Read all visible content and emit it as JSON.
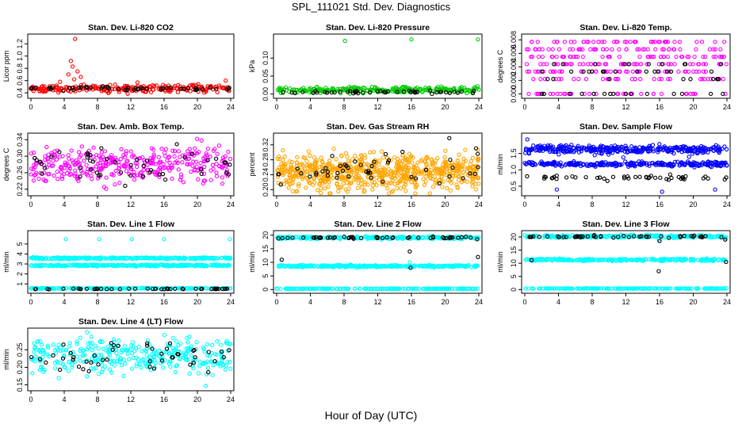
{
  "page": {
    "title": "SPL_111021  Std. Dev. Diagnostics",
    "xlabel": "Hour of Day (UTC)"
  },
  "colors": {
    "red": "#ff0000",
    "green": "#00cc00",
    "magenta": "#ff00ff",
    "orange": "#ffa500",
    "blue": "#0000ff",
    "cyan": "#00ffff",
    "black": "#000000"
  },
  "chart_data": [
    {
      "id": "co2",
      "type": "scatter",
      "title": "Stan. Dev. Li-820 CO2",
      "ylabel": "Licor ppm",
      "xlim": [
        0,
        24
      ],
      "ylim": [
        0.35,
        1.32
      ],
      "xticks": [
        0,
        4,
        8,
        12,
        16,
        20,
        24
      ],
      "xticklabels": [
        "0",
        "4",
        "8",
        "12",
        "16",
        "20",
        "24"
      ],
      "yticks": [
        0.4,
        0.6,
        0.8,
        1.0,
        1.2
      ],
      "yticklabels": [
        "0.4",
        "0.6",
        "0.8",
        "1.0",
        "1.2"
      ],
      "series": [
        {
          "name": "all",
          "color": "red",
          "bands": [
            {
              "y": 0.47,
              "sd": 0.03,
              "n": 240
            }
          ],
          "extra": [
            [
              5.3,
              1.28
            ],
            [
              4.8,
              0.92
            ],
            [
              5.0,
              0.83
            ],
            [
              5.6,
              0.75
            ],
            [
              4.5,
              0.7
            ],
            [
              6.0,
              0.66
            ],
            [
              5.2,
              0.62
            ],
            [
              23.4,
              0.6
            ],
            [
              3.5,
              0.58
            ],
            [
              12.8,
              0.57
            ]
          ]
        },
        {
          "name": "hourly",
          "color": "black",
          "bands": [
            {
              "y": 0.47,
              "sd": 0.015,
              "n": 48
            }
          ],
          "extra": []
        }
      ]
    },
    {
      "id": "pressure",
      "type": "scatter",
      "title": "Stan. Dev. Li-820 Pressure",
      "ylabel": "kPa",
      "xlim": [
        0,
        24
      ],
      "ylim": [
        -0.005,
        0.16
      ],
      "xticks": [
        0,
        4,
        8,
        12,
        16,
        20,
        24
      ],
      "xticklabels": [
        "0",
        "4",
        "8",
        "12",
        "16",
        "20",
        "24"
      ],
      "yticks": [
        0.0,
        0.05,
        0.1
      ],
      "yticklabels": [
        "0.00",
        "0.05",
        "0.10"
      ],
      "series": [
        {
          "name": "all",
          "color": "green",
          "bands": [
            {
              "y": 0.012,
              "sd": 0.004,
              "n": 260
            }
          ],
          "extra": [
            [
              8.1,
              0.148
            ],
            [
              16.0,
              0.152
            ],
            [
              23.9,
              0.152
            ]
          ]
        },
        {
          "name": "hourly",
          "color": "black",
          "bands": [
            {
              "y": 0.006,
              "sd": 0.002,
              "n": 48
            }
          ],
          "extra": []
        }
      ]
    },
    {
      "id": "temp",
      "type": "scatter",
      "title": "Stan. Dev. Li-820 Temp.",
      "ylabel": "degrees C",
      "xlim": [
        0,
        24
      ],
      "ylim": [
        -0.0003,
        0.0085
      ],
      "xticks": [
        0,
        4,
        8,
        12,
        16,
        20,
        24
      ],
      "xticklabels": [
        "0",
        "4",
        "8",
        "12",
        "16",
        "20",
        "24"
      ],
      "yticks": [
        0.0,
        0.002,
        0.004,
        0.006,
        0.008
      ],
      "yticklabels": [
        "0.000",
        "0.002",
        "0.004",
        "0.006",
        "0.008"
      ],
      "series": [
        {
          "name": "all",
          "color": "magenta",
          "levels": [
            0.0,
            0.0022,
            0.0033,
            0.0044,
            0.0055,
            0.0066,
            0.0077
          ],
          "n": 300
        },
        {
          "name": "hourly",
          "color": "black",
          "levels": [
            0.0,
            0.0022,
            0.0033,
            0.0044
          ],
          "n": 48
        }
      ]
    },
    {
      "id": "ambbox",
      "type": "scatter",
      "title": "Stan. Dev. Amb. Box Temp.",
      "ylabel": "degrees C",
      "xlim": [
        0,
        24
      ],
      "ylim": [
        0.21,
        0.35
      ],
      "xticks": [
        0,
        4,
        8,
        12,
        16,
        20,
        24
      ],
      "xticklabels": [
        "0",
        "4",
        "8",
        "12",
        "16",
        "20",
        "24"
      ],
      "yticks": [
        0.22,
        0.26,
        0.3,
        0.34
      ],
      "yticklabels": [
        "0.22",
        "0.26",
        "0.30",
        "0.34"
      ],
      "series": [
        {
          "name": "all",
          "color": "magenta",
          "bands": [
            {
              "y": 0.28,
              "sd": 0.022,
              "n": 360
            }
          ],
          "extra": []
        },
        {
          "name": "hourly",
          "color": "black",
          "bands": [
            {
              "y": 0.28,
              "sd": 0.02,
              "n": 48
            }
          ],
          "extra": []
        }
      ]
    },
    {
      "id": "rh",
      "type": "scatter",
      "title": "Stan. Dev. Gas Stream RH",
      "ylabel": "percent",
      "xlim": [
        0,
        24
      ],
      "ylim": [
        0.19,
        0.345
      ],
      "xticks": [
        0,
        4,
        8,
        12,
        16,
        20,
        24
      ],
      "xticklabels": [
        "0",
        "4",
        "8",
        "12",
        "16",
        "20",
        "24"
      ],
      "yticks": [
        0.2,
        0.24,
        0.28,
        0.32
      ],
      "yticklabels": [
        "0.20",
        "0.24",
        "0.28",
        "0.32"
      ],
      "series": [
        {
          "name": "all",
          "color": "orange",
          "bands": [
            {
              "y": 0.245,
              "sd": 0.024,
              "n": 700
            }
          ],
          "extra": []
        },
        {
          "name": "hourly",
          "color": "black",
          "bands": [
            {
              "y": 0.25,
              "sd": 0.022,
              "n": 48
            }
          ],
          "extra": [
            [
              20.5,
              0.338
            ]
          ]
        }
      ]
    },
    {
      "id": "sample",
      "type": "scatter",
      "title": "Stan. Dev. Sample Flow",
      "ylabel": "ml/min",
      "xlim": [
        0,
        24
      ],
      "ylim": [
        0.28,
        2.05
      ],
      "xticks": [
        0,
        4,
        8,
        12,
        16,
        20,
        24
      ],
      "xticklabels": [
        "0",
        "4",
        "8",
        "12",
        "16",
        "20",
        "24"
      ],
      "yticks": [
        0.5,
        1.0,
        1.5
      ],
      "yticklabels": [
        "0.5",
        "1.0",
        "1.5"
      ],
      "series": [
        {
          "name": "all",
          "color": "blue",
          "bands": [
            {
              "y": 1.63,
              "sd": 0.06,
              "n": 340
            },
            {
              "y": 1.18,
              "sd": 0.035,
              "n": 260
            }
          ],
          "extra": [
            [
              0.3,
              1.93
            ],
            [
              16.3,
              0.33
            ],
            [
              3.8,
              0.4
            ],
            [
              22.6,
              0.4
            ],
            [
              11.7,
              1.38
            ],
            [
              19.5,
              1.4
            ],
            [
              8.3,
              1.45
            ]
          ]
        },
        {
          "name": "hourly",
          "color": "black",
          "bands": [
            {
              "y": 0.76,
              "sd": 0.04,
              "n": 48
            }
          ],
          "extra": []
        }
      ]
    },
    {
      "id": "line1",
      "type": "scatter",
      "title": "Stan. Dev. Line 1 Flow",
      "ylabel": "ml/min",
      "xlim": [
        0,
        24
      ],
      "ylim": [
        0.3,
        6.1
      ],
      "xticks": [
        0,
        4,
        8,
        12,
        16,
        20,
        24
      ],
      "xticklabels": [
        "0",
        "4",
        "8",
        "12",
        "16",
        "20",
        "24"
      ],
      "yticks": [
        1,
        2,
        3,
        4,
        5
      ],
      "yticklabels": [
        "1",
        "2",
        "3",
        "4",
        "5"
      ],
      "series": [
        {
          "name": "all",
          "color": "cyan",
          "bands": [
            {
              "y": 3.58,
              "sd": 0.04,
              "n": 320
            },
            {
              "y": 2.85,
              "sd": 0.04,
              "n": 320
            },
            {
              "y": 0.55,
              "sd": 0.02,
              "n": 200
            }
          ],
          "extra": [
            [
              4.2,
              5.5
            ],
            [
              8.2,
              5.5
            ],
            [
              12.1,
              5.5
            ],
            [
              16.0,
              5.5
            ],
            [
              23.9,
              5.5
            ]
          ]
        },
        {
          "name": "hourly",
          "color": "black",
          "bands": [
            {
              "y": 0.5,
              "sd": 0.02,
              "n": 48
            }
          ],
          "extra": []
        }
      ]
    },
    {
      "id": "line2",
      "type": "scatter",
      "title": "Stan. Dev. Line 2 Flow",
      "ylabel": "ml/min",
      "xlim": [
        0,
        24
      ],
      "ylim": [
        -0.5,
        20.8
      ],
      "xticks": [
        0,
        4,
        8,
        12,
        16,
        20,
        24
      ],
      "xticklabels": [
        "0",
        "4",
        "8",
        "12",
        "16",
        "20",
        "24"
      ],
      "yticks": [
        0,
        5,
        10,
        15,
        20
      ],
      "yticklabels": [
        "0",
        "5",
        "10",
        "15",
        "20"
      ],
      "series": [
        {
          "name": "all",
          "color": "cyan",
          "bands": [
            {
              "y": 19.1,
              "sd": 0.25,
              "n": 260
            },
            {
              "y": 8.6,
              "sd": 0.2,
              "n": 300
            },
            {
              "y": 0.3,
              "sd": 0.05,
              "n": 200
            }
          ],
          "extra": [
            [
              0.4,
              18.5
            ],
            [
              0.6,
              11.0
            ],
            [
              15.8,
              10.0
            ],
            [
              23.9,
              18.8
            ]
          ]
        },
        {
          "name": "hourly",
          "color": "black",
          "bands": [
            {
              "y": 19.1,
              "sd": 0.2,
              "n": 48
            }
          ],
          "extra": [
            [
              0.6,
              11.0
            ],
            [
              15.8,
              14.0
            ],
            [
              15.9,
              8.0
            ],
            [
              23.9,
              12.0
            ],
            [
              23.8,
              18.5
            ]
          ]
        }
      ]
    },
    {
      "id": "line3",
      "type": "scatter",
      "title": "Stan. Dev. Line 3 Flow",
      "ylabel": "ml/min",
      "xlim": [
        0,
        24
      ],
      "ylim": [
        -0.5,
        21.5
      ],
      "xticks": [
        0,
        4,
        8,
        12,
        16,
        20,
        24
      ],
      "xticklabels": [
        "0",
        "4",
        "8",
        "12",
        "16",
        "20",
        "24"
      ],
      "yticks": [
        0,
        5,
        10,
        15,
        20
      ],
      "yticklabels": [
        "0",
        "5",
        "10",
        "15",
        "20"
      ],
      "series": [
        {
          "name": "all",
          "color": "cyan",
          "bands": [
            {
              "y": 20.2,
              "sd": 0.25,
              "n": 260
            },
            {
              "y": 11.3,
              "sd": 0.2,
              "n": 300
            },
            {
              "y": 0.4,
              "sd": 0.05,
              "n": 200
            }
          ],
          "extra": [
            [
              0.2,
              20.0
            ],
            [
              15.9,
              19.0
            ],
            [
              23.8,
              19.5
            ]
          ]
        },
        {
          "name": "hourly",
          "color": "black",
          "bands": [
            {
              "y": 20.1,
              "sd": 0.2,
              "n": 48
            }
          ],
          "extra": [
            [
              0.8,
              11.2
            ],
            [
              15.9,
              7.0
            ],
            [
              16.0,
              18.5
            ],
            [
              23.9,
              10.5
            ],
            [
              23.8,
              19.0
            ]
          ]
        }
      ]
    },
    {
      "id": "line4",
      "type": "scatter",
      "title": "Stan. Dev. Line 4 (LT) Flow",
      "ylabel": "ml/min",
      "xlim": [
        0,
        24
      ],
      "ylim": [
        0.14,
        0.305
      ],
      "xticks": [
        0,
        4,
        8,
        12,
        16,
        20,
        24
      ],
      "xticklabels": [
        "0",
        "4",
        "8",
        "12",
        "16",
        "20",
        "24"
      ],
      "yticks": [
        0.15,
        0.2,
        0.25
      ],
      "yticklabels": [
        "0.15",
        "0.20",
        "0.25"
      ],
      "series": [
        {
          "name": "all",
          "color": "cyan",
          "bands": [
            {
              "y": 0.235,
              "sd": 0.025,
              "n": 340
            }
          ],
          "extra": [
            [
              21.0,
              0.147
            ]
          ]
        },
        {
          "name": "hourly",
          "color": "black",
          "bands": [
            {
              "y": 0.232,
              "sd": 0.025,
              "n": 48
            }
          ],
          "extra": []
        }
      ]
    }
  ]
}
